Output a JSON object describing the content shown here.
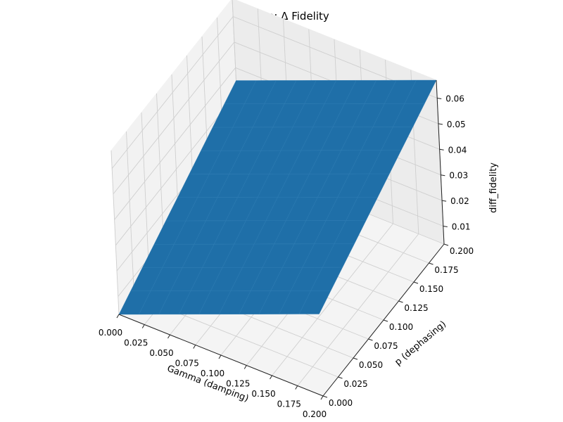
{
  "chart_data": {
    "type": "surface3d",
    "title": "Surface: Δ Fidelity",
    "xlabel": "Gamma (damping)",
    "ylabel": "p (dephasing)",
    "zlabel": "diff_fidelity",
    "x_ticks": [
      "0.000",
      "0.025",
      "0.050",
      "0.075",
      "0.100",
      "0.125",
      "0.150",
      "0.175",
      "0.200"
    ],
    "y_ticks": [
      "0.000",
      "0.025",
      "0.050",
      "0.075",
      "0.100",
      "0.125",
      "0.150",
      "0.175",
      "0.200"
    ],
    "z_ticks": [
      "0.01",
      "0.02",
      "0.03",
      "0.04",
      "0.05",
      "0.06"
    ],
    "xlim": [
      0,
      0.2
    ],
    "ylim": [
      0,
      0.2
    ],
    "zlim": [
      0.003,
      0.067
    ],
    "grid": true,
    "surface_color": "#1f6fa8",
    "surface_corners": [
      {
        "x": 0.0,
        "y": 0.0,
        "z": 0.003
      },
      {
        "x": 0.2,
        "y": 0.0,
        "z": 0.035
      },
      {
        "x": 0.0,
        "y": 0.2,
        "z": 0.035
      },
      {
        "x": 0.2,
        "y": 0.2,
        "z": 0.067
      }
    ],
    "surface_grid_size": 10
  }
}
